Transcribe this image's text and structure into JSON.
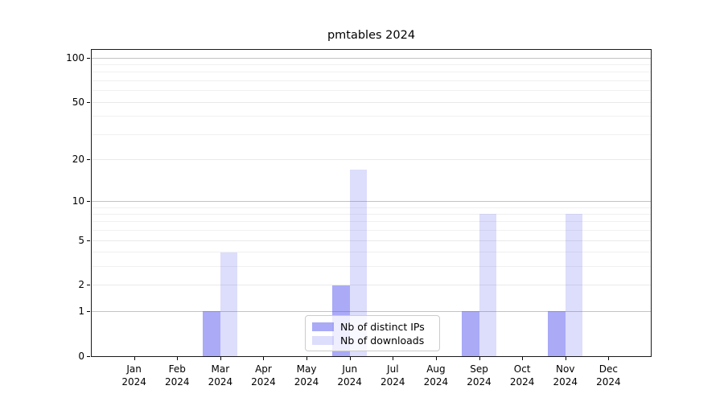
{
  "chart_data": {
    "type": "bar",
    "title": "pmtables 2024",
    "categories": [
      "Jan",
      "Feb",
      "Mar",
      "Apr",
      "May",
      "Jun",
      "Jul",
      "Aug",
      "Sep",
      "Oct",
      "Nov",
      "Dec"
    ],
    "year_label": "2024",
    "series": [
      {
        "name": "Nb of distinct IPs",
        "color": "rgba(85,85,240,0.5)",
        "values": [
          0,
          0,
          1,
          0,
          0,
          2,
          0,
          0,
          1,
          0,
          1,
          0
        ]
      },
      {
        "name": "Nb of downloads",
        "color": "rgba(85,85,240,0.2)",
        "values": [
          0,
          0,
          4,
          0,
          0,
          17,
          0,
          0,
          8,
          0,
          8,
          0
        ]
      }
    ],
    "yscale": "log1p",
    "ylim": [
      0,
      113
    ],
    "yticks": [
      0,
      1,
      2,
      5,
      10,
      20,
      50,
      100
    ],
    "yticks_decade": [
      1,
      10,
      100
    ],
    "yminor_ticks": [
      3,
      4,
      6,
      7,
      8,
      9,
      30,
      40,
      60,
      70,
      80,
      90
    ],
    "grid": "on",
    "legend_position": "lower center",
    "colors": {
      "decade_gridline": "#c3c3c3",
      "labeled_gridline": "#e9e9e9",
      "minor_gridline": "#f0f0f0",
      "spine": "#1a1a1a",
      "text": "#000000"
    }
  }
}
